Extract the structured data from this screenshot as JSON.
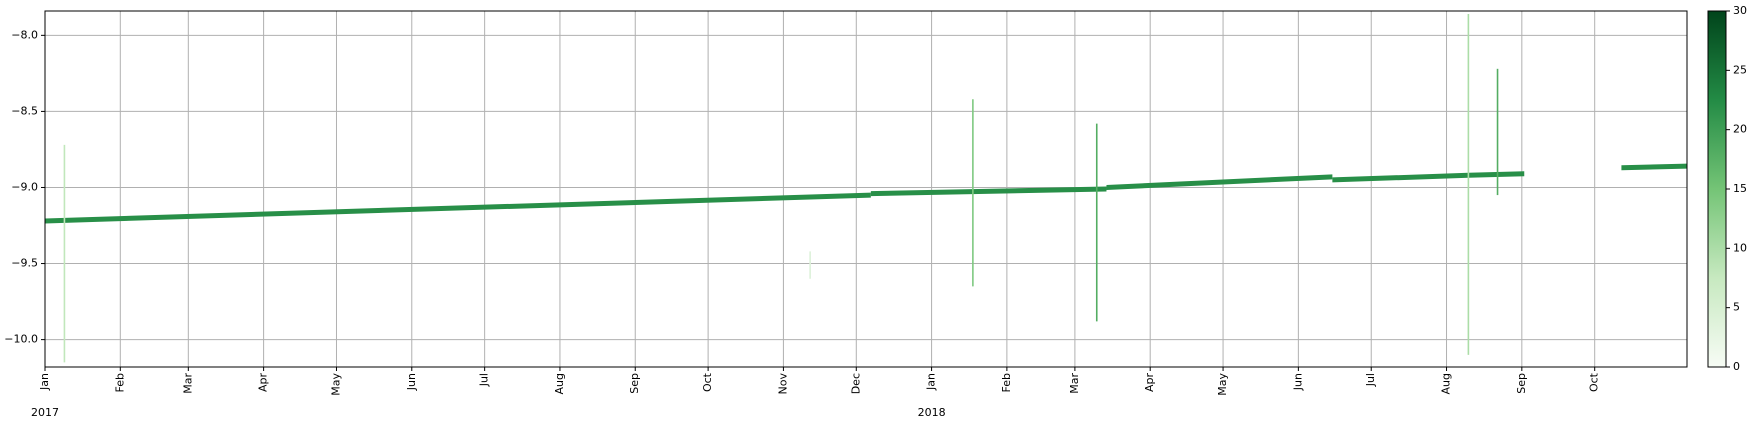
{
  "chart_data": {
    "type": "scatter",
    "title": "",
    "xlabel": "",
    "ylabel": "",
    "x_axis": {
      "kind": "date",
      "range": [
        "2017-01-01",
        "2018-11-08"
      ],
      "tick_labels": [
        "Jan",
        "Feb",
        "Mar",
        "Apr",
        "May",
        "Jun",
        "Jul",
        "Aug",
        "Sep",
        "Oct",
        "Nov",
        "Dec",
        "Jan",
        "Feb",
        "Mar",
        "Apr",
        "May",
        "Jun",
        "Jul",
        "Aug",
        "Sep",
        "Oct"
      ],
      "year_labels": [
        "2017",
        "2018"
      ]
    },
    "y_axis": {
      "range": [
        -10.18,
        -7.84
      ],
      "tick_labels": [
        "-8.0",
        "-8.5",
        "-9.0",
        "-9.5",
        "-10.0"
      ]
    },
    "grid": true,
    "colorbar": {
      "range": [
        0,
        30
      ],
      "tick_labels": [
        "0",
        "5",
        "10",
        "15",
        "20",
        "25",
        "30"
      ],
      "colormap": "Greens"
    },
    "trend_segments": [
      {
        "x_start": "2017-01-01",
        "y_start": -9.22,
        "x_end": "2017-12-07",
        "y_end": -9.05,
        "density": 22
      },
      {
        "x_start": "2017-12-07",
        "y_start": -9.04,
        "x_end": "2018-03-14",
        "y_end": -9.01,
        "density": 22
      },
      {
        "x_start": "2018-03-14",
        "y_start": -9.0,
        "x_end": "2018-06-15",
        "y_end": -8.93,
        "density": 22
      },
      {
        "x_start": "2018-06-15",
        "y_start": -8.95,
        "x_end": "2018-08-10",
        "y_end": -8.92,
        "density": 22
      },
      {
        "x_start": "2018-08-10",
        "y_start": -8.92,
        "x_end": "2018-09-02",
        "y_end": -8.91,
        "density": 22
      },
      {
        "x_start": "2018-10-12",
        "y_start": -8.87,
        "x_end": "2018-11-08",
        "y_end": -8.86,
        "density": 22
      }
    ],
    "spikes": [
      {
        "x": "2017-01-09",
        "y_min": -10.15,
        "y_max": -8.72,
        "density": 8
      },
      {
        "x": "2017-11-12",
        "y_min": -9.6,
        "y_max": -9.42,
        "density": 4
      },
      {
        "x": "2018-01-18",
        "y_min": -9.65,
        "y_max": -8.42,
        "density": 14
      },
      {
        "x": "2018-03-10",
        "y_min": -9.88,
        "y_max": -8.58,
        "density": 18
      },
      {
        "x": "2018-08-10",
        "y_min": -10.1,
        "y_max": -7.86,
        "density": 10
      },
      {
        "x": "2018-08-22",
        "y_min": -9.05,
        "y_max": -8.22,
        "density": 18
      }
    ]
  }
}
